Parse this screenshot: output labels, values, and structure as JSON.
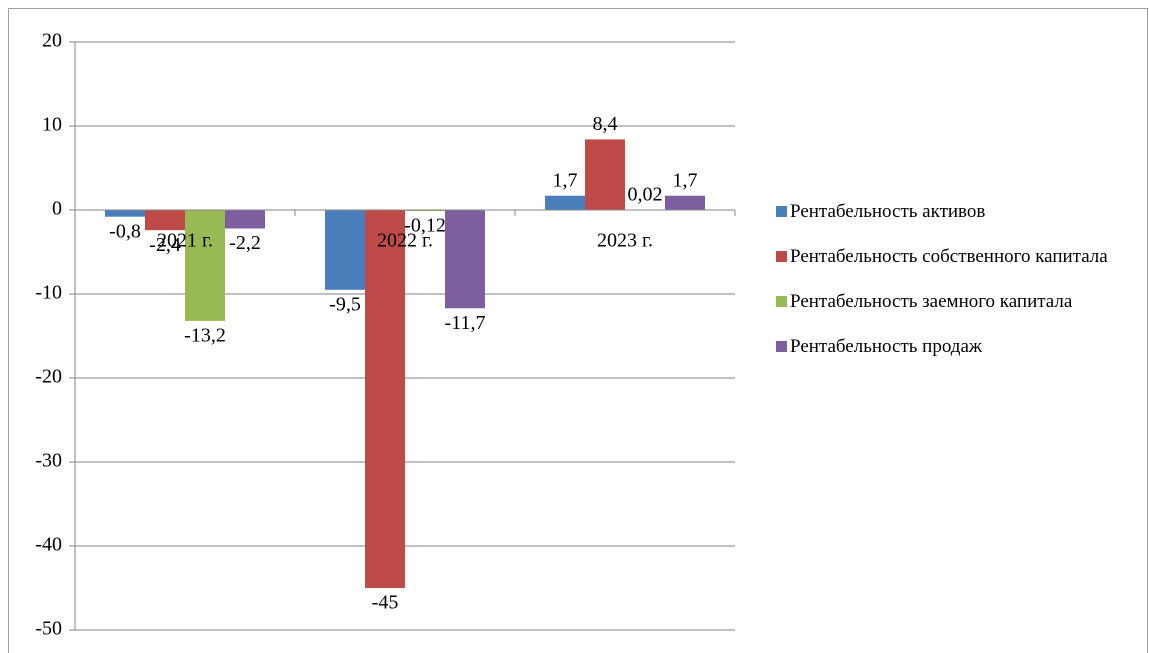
{
  "chart_data": {
    "type": "bar",
    "categories": [
      "2021 г.",
      "2022 г.",
      "2023 г."
    ],
    "series": [
      {
        "name": "Рентабельность активов",
        "color": "#4a7ebb",
        "values": [
          -0.8,
          -9.5,
          1.7
        ],
        "value_labels": [
          "-0,8",
          "-9,5",
          "1,7"
        ]
      },
      {
        "name": "Рентабельность собственного капитала",
        "color": "#be4b48",
        "values": [
          -2.4,
          -45,
          8.4
        ],
        "value_labels": [
          "-2,4",
          "-45",
          "8,4"
        ]
      },
      {
        "name": "Рентабельность заемного капитала",
        "color": "#98b954",
        "values": [
          -13.2,
          -0.12,
          0.02
        ],
        "value_labels": [
          "-13,2",
          "-0,12",
          "0,02"
        ]
      },
      {
        "name": "Рентабельность продаж",
        "color": "#7d5fa0",
        "values": [
          -2.2,
          -11.7,
          1.7
        ],
        "value_labels": [
          "-2,2",
          "-11,7",
          "1,7"
        ]
      }
    ],
    "ylim": [
      -50,
      20
    ],
    "yticks": [
      -50,
      -40,
      -30,
      -20,
      -10,
      0,
      10,
      20
    ],
    "grid": true,
    "legend": "right"
  }
}
